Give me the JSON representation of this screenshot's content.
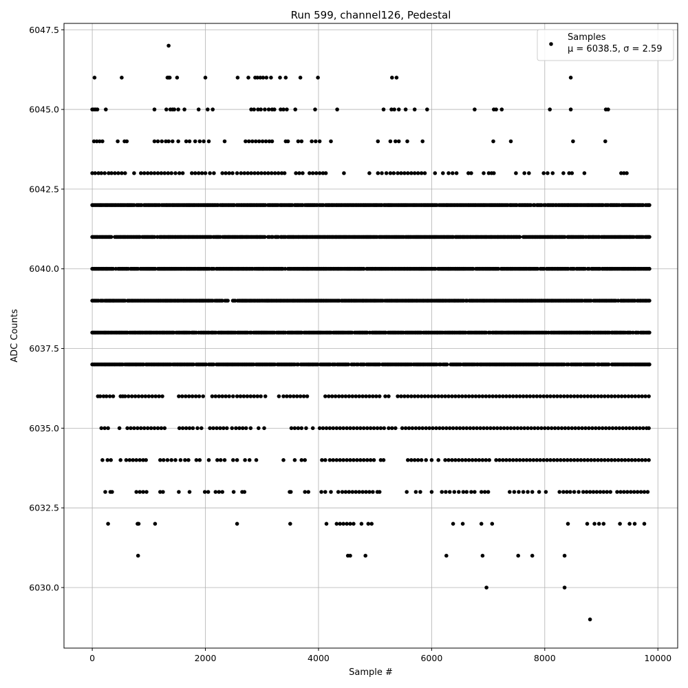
{
  "chart_data": {
    "type": "scatter",
    "title": "Run 599, channel126, Pedestal",
    "xlabel": "Sample #",
    "ylabel": "ADC Counts",
    "xlim": [
      -500,
      10350
    ],
    "ylim": [
      6028.1,
      6047.7
    ],
    "xticks": [
      0,
      2000,
      4000,
      6000,
      8000,
      10000
    ],
    "xtick_labels": [
      "0",
      "2000",
      "4000",
      "6000",
      "8000",
      "10000"
    ],
    "yticks": [
      6030.0,
      6032.5,
      6035.0,
      6037.5,
      6040.0,
      6042.5,
      6045.0,
      6047.5
    ],
    "ytick_labels": [
      "6030.0",
      "6032.5",
      "6035.0",
      "6037.5",
      "6040.0",
      "6042.5",
      "6045.0",
      "6047.5"
    ],
    "grid": true,
    "legend": {
      "placement": "top-right",
      "entries": [
        {
          "name": "Samples",
          "stat_text": "μ = 6038.5, σ = 2.59",
          "marker_color": "#000000"
        }
      ]
    },
    "marker_color": "#000000",
    "series": [
      {
        "name": "Samples",
        "x_range": [
          0,
          9850
        ],
        "level_value_hint": "integer ADC levels from 6029 to 6047",
        "levels": [
          {
            "y": 6047,
            "x": [
              1350
            ]
          },
          {
            "y": 6046,
            "x": [
              40,
              520,
              1330,
              1350,
              1370,
              1500,
              2000,
              2570,
              2760,
              2880,
              2920,
              2970,
              3020,
              3080,
              3160,
              3320,
              3420,
              3680,
              3990,
              5300,
              5380,
              8460
            ]
          },
          {
            "y": 6045,
            "x": [
              0,
              30,
              60,
              90,
              240,
              1100,
              1310,
              1380,
              1420,
              1450,
              1520,
              1630,
              1880,
              2040,
              2130,
              2810,
              2860,
              2930,
              2980,
              3050,
              3120,
              3180,
              3220,
              3330,
              3380,
              3440,
              3590,
              3940,
              4330,
              5150,
              5290,
              5340,
              5420,
              5540,
              5700,
              5920,
              6760,
              7100,
              7140,
              7240,
              8090,
              8460,
              9080,
              9120
            ]
          },
          {
            "y": 6044,
            "x": [
              30,
              80,
              130,
              180,
              450,
              570,
              610,
              1100,
              1160,
              1230,
              1300,
              1350,
              1420,
              1520,
              1660,
              1720,
              1820,
              1900,
              1970,
              2060,
              2340,
              2710,
              2770,
              2830,
              2890,
              2950,
              3010,
              3070,
              3130,
              3180,
              3420,
              3460,
              3640,
              3700,
              3880,
              3950,
              4020,
              4220,
              5050,
              5270,
              5360,
              5420,
              5570,
              5840,
              7090,
              7400,
              8500,
              9070
            ]
          },
          {
            "y": 6043,
            "x": [
              0,
              50,
              110,
              160,
              220,
              290,
              340,
              400,
              460,
              520,
              580,
              740,
              860,
              920,
              980,
              1040,
              1100,
              1160,
              1220,
              1280,
              1340,
              1400,
              1470,
              1540,
              1600,
              1760,
              1820,
              1880,
              1940,
              2000,
              2080,
              2150,
              2300,
              2360,
              2420,
              2480,
              2560,
              2630,
              2690,
              2750,
              2810,
              2870,
              2930,
              2990,
              3050,
              3110,
              3170,
              3230,
              3290,
              3350,
              3400,
              3600,
              3660,
              3720,
              3840,
              3900,
              3960,
              4020,
              4080,
              4130,
              4450,
              4900,
              5050,
              5120,
              5200,
              5270,
              5330,
              5400,
              5460,
              5520,
              5580,
              5640,
              5700,
              5760,
              5820,
              5880,
              6060,
              6200,
              6300,
              6370,
              6440,
              6650,
              6700,
              6920,
              7010,
              7060,
              7100,
              7490,
              7640,
              7720,
              7980,
              8050,
              8140,
              8330,
              8430,
              8480,
              8700,
              9350,
              9400,
              9450
            ]
          },
          {
            "y": 6042,
            "x_span": [
              0,
              9850
            ],
            "density": "dense"
          },
          {
            "y": 6041,
            "x_span": [
              0,
              9850
            ],
            "density": "dense"
          },
          {
            "y": 6040,
            "x_span": [
              0,
              9850
            ],
            "density": "dense"
          },
          {
            "y": 6039,
            "x_span": [
              0,
              9850
            ],
            "density": "dense"
          },
          {
            "y": 6038,
            "x_span": [
              0,
              9850
            ],
            "density": "dense"
          },
          {
            "y": 6037,
            "x_span": [
              0,
              9850
            ],
            "density": "dense"
          },
          {
            "y": 6036,
            "x": [
              100,
              140,
              200,
              250,
              310,
              370,
              500,
              540,
              580,
              640,
              700,
              760,
              820,
              880,
              940,
              1000,
              1060,
              1120,
              1180,
              1240,
              1530,
              1590,
              1650,
              1710,
              1770,
              1830,
              1890,
              1960,
              2120,
              2180,
              2240,
              2300,
              2360,
              2420,
              2490,
              2560,
              2620,
              2680,
              2740,
              2800,
              2860,
              2920,
              2980,
              3060,
              3300,
              3380,
              3440,
              3500,
              3560,
              3620,
              3680,
              3740,
              3800,
              4120,
              4180,
              4240,
              4300,
              4360,
              4420,
              4480,
              4540,
              4600,
              4660,
              4720,
              4780,
              4840,
              4900,
              4960,
              5020,
              5080,
              5180,
              5240,
              5400,
              5460,
              5520,
              5580,
              5640,
              5700,
              5760,
              5820,
              5880,
              5940,
              6000,
              6060,
              6120,
              6180,
              6240,
              6300,
              6360,
              6420,
              6480,
              6540,
              6600,
              6660,
              6720,
              6780,
              6840,
              6900,
              6960,
              7020,
              7080,
              7140,
              7200,
              7260,
              7320,
              7380,
              7440,
              7500,
              7560,
              7620,
              7680,
              7740,
              7800,
              7860,
              7920,
              7980,
              8040,
              8100,
              8160,
              8220,
              8280,
              8340,
              8400,
              8460,
              8520,
              8580,
              8640,
              8700,
              8760,
              8820,
              8880,
              8940,
              9000,
              9060,
              9120,
              9180,
              9240,
              9300,
              9360,
              9420,
              9480,
              9540,
              9600,
              9660,
              9720,
              9780,
              9840
            ]
          },
          {
            "y": 6035,
            "x": [
              160,
              220,
              280,
              480,
              620,
              680,
              740,
              800,
              860,
              920,
              980,
              1040,
              1100,
              1160,
              1220,
              1280,
              1540,
              1600,
              1660,
              1720,
              1780,
              1860,
              1930,
              2080,
              2140,
              2200,
              2260,
              2320,
              2380,
              2470,
              2540,
              2600,
              2660,
              2720,
              2800,
              2940,
              3040,
              3520,
              3580,
              3640,
              3700,
              3780,
              3900,
              4020,
              4080,
              4140,
              4200,
              4260,
              4320,
              4380,
              4440,
              4500,
              4560,
              4620,
              4680,
              4740,
              4800,
              4860,
              4920,
              4980,
              5040,
              5100,
              5160,
              5240,
              5300,
              5360,
              5480,
              5540,
              5600,
              5660,
              5720,
              5780,
              5840,
              5900,
              5960,
              6020,
              6080,
              6140,
              6200,
              6260,
              6320,
              6380,
              6440,
              6500,
              6560,
              6620,
              6680,
              6740,
              6800,
              6860,
              6920,
              6980,
              7040,
              7100,
              7160,
              7220,
              7280,
              7340,
              7400,
              7460,
              7520,
              7580,
              7640,
              7700,
              7760,
              7820,
              7880,
              7940,
              8000,
              8060,
              8120,
              8180,
              8240,
              8300,
              8360,
              8420,
              8480,
              8540,
              8600,
              8660,
              8720,
              8780,
              8840,
              8900,
              8960,
              9020,
              9080,
              9140,
              9200,
              9260,
              9320,
              9380,
              9440,
              9500,
              9560,
              9620,
              9680,
              9740,
              9800,
              9840
            ]
          },
          {
            "y": 6034,
            "x": [
              180,
              270,
              330,
              500,
              600,
              660,
              720,
              780,
              840,
              900,
              950,
              1200,
              1260,
              1330,
              1400,
              1470,
              1560,
              1640,
              1700,
              1840,
              1900,
              2060,
              2210,
              2270,
              2340,
              2490,
              2560,
              2700,
              2780,
              2900,
              3380,
              3580,
              3700,
              3760,
              4060,
              4120,
              4200,
              4260,
              4320,
              4380,
              4440,
              4500,
              4560,
              4620,
              4680,
              4740,
              4800,
              4860,
              4920,
              4980,
              5100,
              5150,
              5580,
              5640,
              5700,
              5760,
              5820,
              5900,
              6000,
              6120,
              6240,
              6300,
              6360,
              6420,
              6480,
              6540,
              6600,
              6660,
              6720,
              6780,
              6840,
              6900,
              6960,
              7020,
              7140,
              7200,
              7260,
              7320,
              7380,
              7440,
              7500,
              7560,
              7620,
              7680,
              7740,
              7800,
              7860,
              7920,
              7980,
              8040,
              8100,
              8160,
              8220,
              8280,
              8340,
              8400,
              8460,
              8520,
              8580,
              8640,
              8700,
              8760,
              8820,
              8880,
              8940,
              9000,
              9060,
              9120,
              9180,
              9240,
              9300,
              9360,
              9420,
              9480,
              9540,
              9600,
              9660,
              9720,
              9780,
              9840
            ]
          },
          {
            "y": 6033,
            "x": [
              230,
              320,
              350,
              780,
              840,
              900,
              960,
              1200,
              1250,
              1530,
              1720,
              1990,
              2050,
              2180,
              2240,
              2300,
              2500,
              2650,
              2690,
              3490,
              3510,
              3760,
              3820,
              4050,
              4120,
              4220,
              4350,
              4420,
              4480,
              4540,
              4600,
              4660,
              4720,
              4780,
              4840,
              4900,
              4960,
              5040,
              5080,
              5560,
              5720,
              5800,
              6000,
              6180,
              6250,
              6320,
              6400,
              6480,
              6560,
              6620,
              6700,
              6760,
              6880,
              6940,
              7000,
              7380,
              7460,
              7540,
              7620,
              7700,
              7780,
              7900,
              8020,
              8260,
              8330,
              8390,
              8450,
              8520,
              8600,
              8680,
              8740,
              8800,
              8860,
              8920,
              8980,
              9040,
              9100,
              9160,
              9280,
              9340,
              9400,
              9460,
              9520,
              9580,
              9640,
              9700,
              9760,
              9820
            ]
          },
          {
            "y": 6032,
            "x": [
              280,
              800,
              820,
              1110,
              2560,
              3500,
              4140,
              4320,
              4380,
              4440,
              4500,
              4560,
              4620,
              4760,
              4880,
              4940,
              6380,
              6550,
              6880,
              7070,
              8410,
              8750,
              8880,
              8960,
              9040,
              9330,
              9500,
              9590,
              9760
            ]
          },
          {
            "y": 6031,
            "x": [
              810,
              4520,
              4560,
              4830,
              6260,
              6900,
              7530,
              7780,
              8350
            ]
          },
          {
            "y": 6030,
            "x": [
              6970,
              8350
            ]
          },
          {
            "y": 6029,
            "x": [
              8800
            ]
          }
        ]
      }
    ]
  }
}
